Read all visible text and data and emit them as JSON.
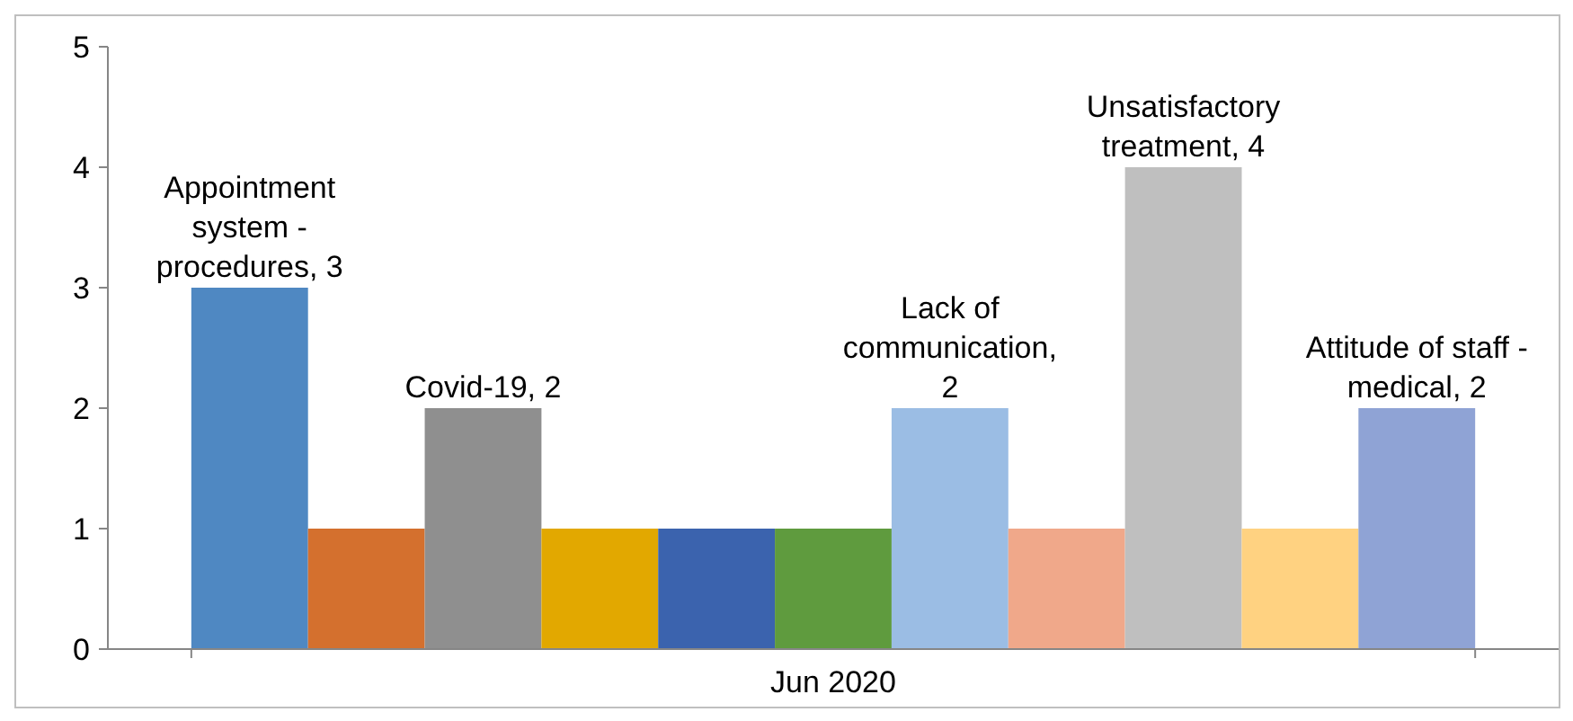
{
  "chart_data": {
    "type": "bar",
    "categories": [
      "Jun 2020"
    ],
    "ylim": [
      0,
      5
    ],
    "yticks": [
      0,
      1,
      2,
      3,
      4,
      5
    ],
    "grid": false,
    "series": [
      {
        "color": "#4f88c2",
        "values": [
          3
        ],
        "value_labels": [
          "Appointment system - procedures, 3"
        ]
      },
      {
        "color": "#d4702e",
        "values": [
          1
        ]
      },
      {
        "color": "#8f8f8f",
        "values": [
          2
        ],
        "value_labels": [
          "Covid-19, 2"
        ]
      },
      {
        "color": "#e2a800",
        "values": [
          1
        ]
      },
      {
        "color": "#3b63ae",
        "values": [
          1
        ]
      },
      {
        "color": "#5f9b3e",
        "values": [
          1
        ]
      },
      {
        "color": "#9bbde4",
        "values": [
          2
        ],
        "value_labels": [
          "Lack of communication, 2"
        ]
      },
      {
        "color": "#f0a88a",
        "values": [
          1
        ]
      },
      {
        "color": "#bfbfbf",
        "values": [
          4
        ],
        "value_labels": [
          "Unsatisfactory treatment, 4"
        ]
      },
      {
        "color": "#ffd281",
        "values": [
          1
        ]
      },
      {
        "color": "#8fa3d5",
        "values": [
          2
        ],
        "value_labels": [
          "Attitude of staff - medical, 2"
        ]
      }
    ]
  }
}
